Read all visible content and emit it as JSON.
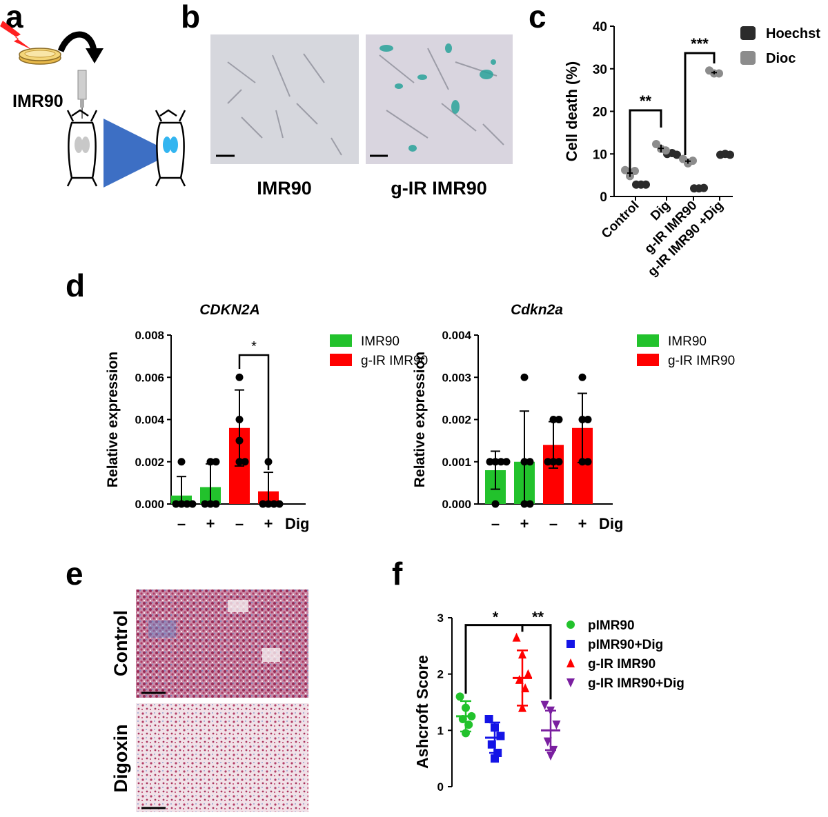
{
  "panels": {
    "a": "a",
    "b": "b",
    "c": "c",
    "d": "d",
    "e": "e",
    "f": "f"
  },
  "colors": {
    "green": "#22c22c",
    "red": "#ff0000",
    "blue": "#1414e6",
    "purple": "#7a1fa0",
    "hoechst": "#2b2b2b",
    "dioc": "#8c8c8c",
    "arrow": "#3d6fc4",
    "lung_blue": "#33b5f0",
    "xgal_cyan": "#2aa39a"
  },
  "panel_a": {
    "label": "IMR90"
  },
  "panel_b": {
    "captions": [
      "IMR90",
      "g-IR IMR90"
    ]
  },
  "panel_e": {
    "captions": [
      "Control",
      "Digoxin"
    ]
  },
  "chart_data": [
    {
      "id": "c",
      "type": "scatter",
      "ylabel": "Cell death (%)",
      "ylim": [
        0,
        40
      ],
      "yticks": [
        0,
        10,
        20,
        30,
        40
      ],
      "categories": [
        "Control",
        "Dig",
        "g-IR IMR90",
        "g-IR IMR90 +Dig"
      ],
      "legend": "top-right",
      "series": [
        {
          "name": "Hoechst",
          "points": [
            [
              2.8,
              2.8,
              2.8
            ],
            [
              10.0,
              10.2,
              9.8
            ],
            [
              1.9,
              1.9,
              2.0
            ],
            [
              9.8,
              10.0,
              9.8
            ]
          ],
          "mean": [
            2.8,
            10.0,
            1.9,
            9.9
          ]
        },
        {
          "name": "Dioc",
          "points": [
            [
              6.2,
              4.8,
              6.0
            ],
            [
              12.3,
              11.2,
              10.8
            ],
            [
              8.8,
              7.8,
              8.4
            ],
            [
              29.6,
              28.9,
              28.9
            ]
          ],
          "mean": [
            5.5,
            11.3,
            8.3,
            29.1
          ],
          "err": [
            0.9,
            0.9,
            0.6,
            0.4
          ]
        }
      ],
      "significance": [
        {
          "from": 0,
          "to": 1,
          "label": "**"
        },
        {
          "from": 2,
          "to": 3,
          "label": "***"
        }
      ]
    },
    {
      "id": "d1",
      "type": "bar",
      "title": "CDKN2A",
      "ylabel": "Relative expression",
      "xlabel": "Dig",
      "ylim": [
        0,
        0.008
      ],
      "yticks": [
        "0.000",
        "0.002",
        "0.004",
        "0.006",
        "0.008"
      ],
      "categories": [
        "–",
        "+",
        "–",
        "+"
      ],
      "legend": "top-right",
      "legend_items": [
        "IMR90",
        "g-IR IMR90"
      ],
      "bar_groups": [
        0,
        0,
        1,
        1
      ],
      "values": [
        0.0004,
        0.0008,
        0.0036,
        0.0006
      ],
      "errors": [
        0.0009,
        0.0011,
        0.0018,
        0.0009
      ],
      "points": [
        [
          0,
          0,
          0,
          0,
          0.002
        ],
        [
          0,
          0,
          0,
          0.002,
          0.002
        ],
        [
          0.002,
          0.002,
          0.003,
          0.004,
          0.006
        ],
        [
          0,
          0,
          0,
          0,
          0.002
        ]
      ],
      "significance": [
        {
          "from": 2,
          "to": 3,
          "label": "*"
        }
      ]
    },
    {
      "id": "d2",
      "type": "bar",
      "title": "Cdkn2a",
      "ylabel": "Relative expression",
      "xlabel": "Dig",
      "ylim": [
        0,
        0.004
      ],
      "yticks": [
        "0.000",
        "0.001",
        "0.002",
        "0.003",
        "0.004"
      ],
      "categories": [
        "–",
        "+",
        "–",
        "+"
      ],
      "legend": "top-right",
      "legend_items": [
        "IMR90",
        "g-IR IMR90"
      ],
      "bar_groups": [
        0,
        0,
        1,
        1
      ],
      "values": [
        0.0008,
        0.001,
        0.0014,
        0.0018
      ],
      "errors": [
        0.00045,
        0.0012,
        0.00055,
        0.00082
      ],
      "points": [
        [
          0,
          0.001,
          0.001,
          0.001,
          0.001
        ],
        [
          0,
          0,
          0.001,
          0.001,
          0.003
        ],
        [
          0.001,
          0.001,
          0.001,
          0.002,
          0.002
        ],
        [
          0.001,
          0.001,
          0.002,
          0.002,
          0.003
        ]
      ],
      "significance": []
    },
    {
      "id": "f",
      "type": "scatter",
      "ylabel": "Ashcroft Score",
      "ylim": [
        0,
        3
      ],
      "yticks": [
        0,
        1,
        2,
        3
      ],
      "legend": "right",
      "series": [
        {
          "name": "pIMR90",
          "marker": "circle",
          "points": [
            1.6,
            1.4,
            1.25,
            1.2,
            1.1,
            0.95
          ],
          "mean": 1.25,
          "sd": 0.27
        },
        {
          "name": "pIMR90+Dig",
          "marker": "square",
          "points": [
            1.2,
            1.05,
            0.9,
            0.75,
            0.6,
            0.5
          ],
          "mean": 0.87,
          "sd": 0.27
        },
        {
          "name": "g-IR IMR90",
          "marker": "triangle-up",
          "points": [
            2.65,
            2.35,
            2.0,
            1.9,
            1.75,
            1.4
          ],
          "mean": 1.93,
          "sd": 0.49
        },
        {
          "name": "g-IR IMR90+Dig",
          "marker": "triangle-down",
          "points": [
            1.45,
            1.35,
            1.1,
            0.8,
            0.65,
            0.55
          ],
          "mean": 1.0,
          "sd": 0.35
        }
      ],
      "significance": [
        {
          "from": 0,
          "to": 2,
          "label": "*"
        },
        {
          "from": 2,
          "to": 3,
          "label": "**"
        }
      ]
    }
  ]
}
